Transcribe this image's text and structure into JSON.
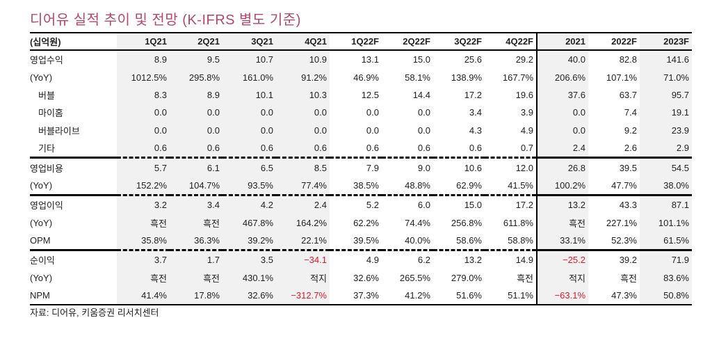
{
  "title": "디어유 실적 추이 및 전망 (K-IFRS 별도 기준)",
  "table": {
    "unit_label": "(십억원)",
    "columns": [
      "1Q21",
      "2Q21",
      "3Q21",
      "4Q21",
      "1Q22F",
      "2Q22F",
      "3Q22F",
      "4Q22F",
      "2021",
      "2022F",
      "2023F"
    ],
    "rows": [
      {
        "label": "영업수익",
        "values": [
          "8.9",
          "9.5",
          "10.7",
          "10.9",
          "13.1",
          "15.0",
          "25.6",
          "29.2",
          "40.0",
          "82.8",
          "141.6"
        ]
      },
      {
        "label": "(YoY)",
        "values": [
          "1012.5%",
          "295.8%",
          "161.0%",
          "91.2%",
          "46.9%",
          "58.1%",
          "138.9%",
          "167.7%",
          "206.6%",
          "107.1%",
          "71.0%"
        ]
      },
      {
        "label": "버블",
        "sub": true,
        "values": [
          "8.3",
          "8.9",
          "10.1",
          "10.3",
          "12.5",
          "14.4",
          "17.2",
          "19.6",
          "37.6",
          "63.7",
          "95.7"
        ]
      },
      {
        "label": "마이홈",
        "sub": true,
        "values": [
          "0.0",
          "0.0",
          "0.0",
          "0.0",
          "0.0",
          "0.0",
          "3.4",
          "3.9",
          "0.0",
          "7.4",
          "19.1"
        ]
      },
      {
        "label": "버블라이브",
        "sub": true,
        "values": [
          "0.0",
          "0.0",
          "0.0",
          "0.0",
          "0.0",
          "0.0",
          "4.3",
          "4.9",
          "0.0",
          "9.2",
          "23.9"
        ]
      },
      {
        "label": "기타",
        "sub": true,
        "values": [
          "0.6",
          "0.6",
          "0.6",
          "0.6",
          "0.6",
          "0.6",
          "0.6",
          "0.7",
          "2.4",
          "2.6",
          "2.9"
        ]
      },
      {
        "label": "영업비용",
        "sep": true,
        "values": [
          "5.7",
          "6.1",
          "6.5",
          "8.5",
          "7.9",
          "9.0",
          "10.6",
          "12.0",
          "26.8",
          "39.5",
          "54.5"
        ]
      },
      {
        "label": "(YoY)",
        "values": [
          "152.2%",
          "104.7%",
          "93.5%",
          "77.4%",
          "38.5%",
          "48.8%",
          "62.9%",
          "41.5%",
          "100.2%",
          "47.7%",
          "38.0%"
        ]
      },
      {
        "label": "영업이익",
        "sep": true,
        "values": [
          "3.2",
          "3.4",
          "4.2",
          "2.4",
          "5.2",
          "6.0",
          "15.0",
          "17.2",
          "13.2",
          "43.3",
          "87.1"
        ]
      },
      {
        "label": "(YoY)",
        "values": [
          "흑전",
          "흑전",
          "467.8%",
          "164.2%",
          "62.2%",
          "74.4%",
          "256.8%",
          "611.8%",
          "흑전",
          "227.1%",
          "101.1%"
        ]
      },
      {
        "label": "OPM",
        "values": [
          "35.8%",
          "36.3%",
          "39.2%",
          "22.1%",
          "39.5%",
          "40.0%",
          "58.6%",
          "58.8%",
          "33.1%",
          "52.3%",
          "61.5%"
        ]
      },
      {
        "label": "순이익",
        "sep": true,
        "values": [
          "3.7",
          "1.7",
          "3.5",
          "−34.1",
          "4.9",
          "6.2",
          "13.2",
          "14.9",
          "−25.2",
          "39.2",
          "71.9"
        ]
      },
      {
        "label": "(YoY)",
        "values": [
          "흑전",
          "흑전",
          "430.1%",
          "적지",
          "32.6%",
          "265.5%",
          "279.0%",
          "흑전",
          "적지",
          "흑전",
          "83.6%"
        ]
      },
      {
        "label": "NPM",
        "values": [
          "41.4%",
          "17.8%",
          "32.6%",
          "−312.7%",
          "37.3%",
          "41.2%",
          "51.6%",
          "51.1%",
          "−63.1%",
          "47.3%",
          "50.8%"
        ]
      }
    ]
  },
  "source": "자료: 디어유, 키움증권 리서치센터",
  "colors": {
    "title": "#b5476f",
    "negative": "#e8192c",
    "shade": "#f1f1f1"
  }
}
